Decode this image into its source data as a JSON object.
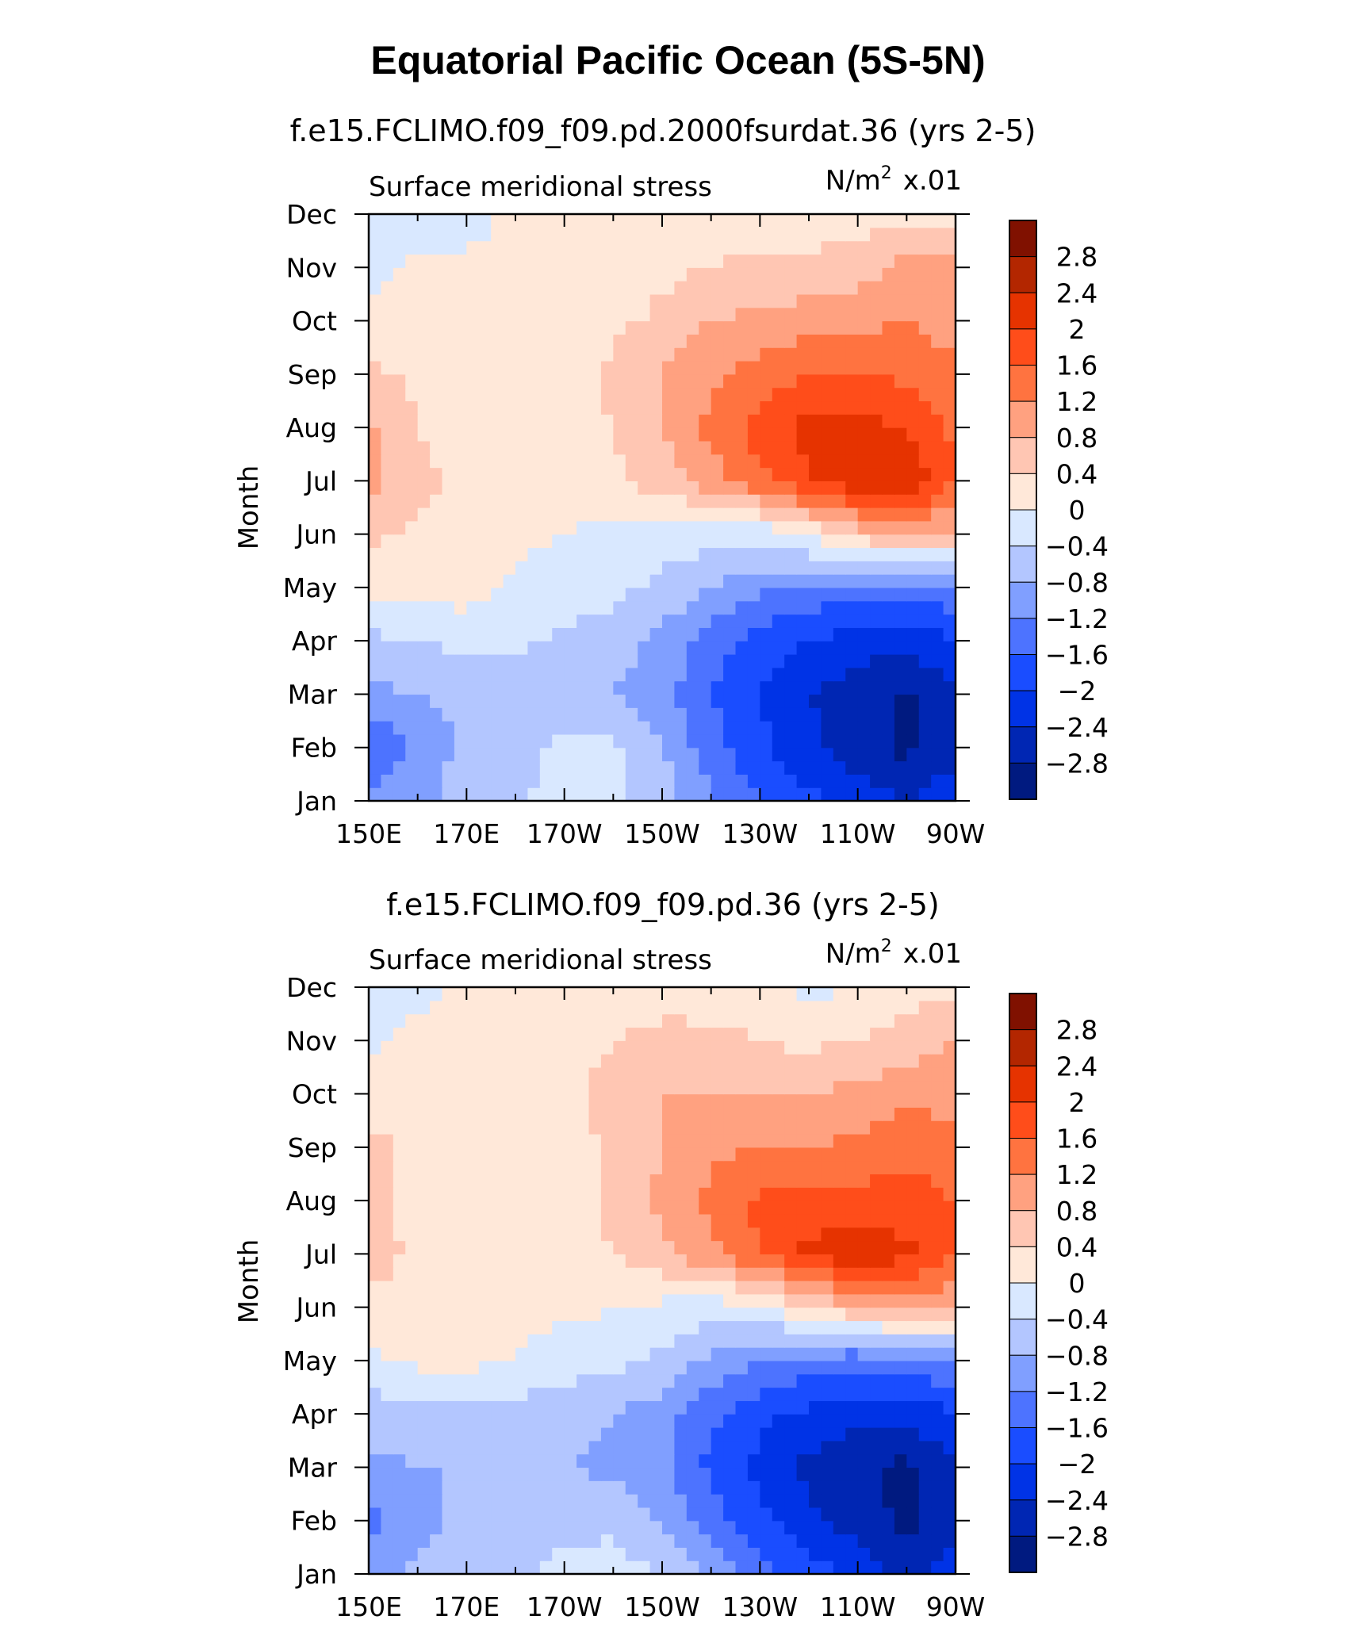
{
  "title": "Equatorial Pacific Ocean (5S-5N)",
  "palette": [
    "#001a80",
    "#0026b3",
    "#0033e6",
    "#1a4dff",
    "#4d73ff",
    "#809fff",
    "#b3c6ff",
    "#d9e8ff",
    "#ffe8d9",
    "#ffc6b3",
    "#ffa180",
    "#ff7340",
    "#ff4d1a",
    "#e63300",
    "#b32600",
    "#801100"
  ],
  "chart_data": [
    {
      "type": "heatmap",
      "subtitle": "f.e15.FCLIMO.f09_f09.pd.2000fsurdat.36 (yrs 2-5)",
      "left_label": "Surface meridional stress",
      "right_label_base": "N/m",
      "right_label_sup": "2",
      "right_label_scale": "x.01",
      "ylabel": "Month",
      "xticks": [
        "150E",
        "170E",
        "170W",
        "150W",
        "130W",
        "110W",
        "90W"
      ],
      "x_range": [
        150,
        270
      ],
      "yticks": [
        "Jan",
        "Feb",
        "Mar",
        "Apr",
        "May",
        "Jun",
        "Jul",
        "Aug",
        "Sep",
        "Oct",
        "Nov",
        "Dec"
      ],
      "colorbar_labels": [
        "2.8",
        "2.4",
        "2",
        "1.6",
        "1.2",
        "0.8",
        "0.4",
        "0",
        "−0.4",
        "−0.8",
        "−1.2",
        "−1.6",
        "−2",
        "−2.4",
        "−2.8"
      ],
      "levels": [
        -2.8,
        -2.4,
        -2,
        -1.6,
        -1.2,
        -0.8,
        -0.4,
        0,
        0.4,
        0.8,
        1.2,
        1.6,
        2,
        2.4,
        2.8
      ],
      "grid_lon": [
        150,
        160,
        170,
        180,
        190,
        200,
        210,
        220,
        230,
        240,
        250,
        260,
        270
      ],
      "grid_month": [
        "Jan",
        "Feb",
        "Mar",
        "Apr",
        "May",
        "Jun",
        "Jul",
        "Aug",
        "Sep",
        "Oct",
        "Nov",
        "Dec"
      ],
      "values": [
        [
          -1.0,
          -0.9,
          -0.6,
          -0.5,
          -0.2,
          -0.3,
          -0.6,
          -1.2,
          -1.6,
          -1.9,
          -2.2,
          -2.4,
          -2.1
        ],
        [
          -1.7,
          -1.1,
          -0.7,
          -0.6,
          -0.3,
          -0.3,
          -0.8,
          -1.4,
          -1.9,
          -2.3,
          -2.6,
          -2.9,
          -2.6
        ],
        [
          -0.9,
          -0.8,
          -0.7,
          -0.7,
          -0.7,
          -0.8,
          -1.0,
          -1.6,
          -2.0,
          -2.4,
          -2.6,
          -2.9,
          -2.5
        ],
        [
          -0.5,
          -0.4,
          -0.3,
          -0.3,
          -0.5,
          -0.6,
          -0.9,
          -1.4,
          -1.8,
          -2.0,
          -2.2,
          -2.3,
          -2.0
        ],
        [
          0.1,
          0.2,
          0.2,
          -0.1,
          -0.2,
          -0.3,
          -0.5,
          -0.8,
          -1.1,
          -1.3,
          -1.4,
          -1.5,
          -1.3
        ],
        [
          0.5,
          0.3,
          0.2,
          0.1,
          0.0,
          -0.1,
          -0.2,
          -0.2,
          -0.3,
          0.1,
          0.6,
          0.9,
          0.7
        ],
        [
          0.9,
          0.5,
          0.3,
          0.2,
          0.2,
          0.3,
          0.6,
          1.0,
          1.5,
          2.0,
          2.3,
          2.4,
          1.6
        ],
        [
          0.9,
          0.4,
          0.2,
          0.2,
          0.2,
          0.4,
          0.8,
          1.3,
          1.8,
          2.1,
          2.1,
          2.0,
          1.5
        ],
        [
          0.5,
          0.3,
          0.2,
          0.2,
          0.2,
          0.5,
          0.8,
          1.1,
          1.4,
          1.6,
          1.6,
          1.5,
          1.3
        ],
        [
          0.1,
          0.2,
          0.2,
          0.2,
          0.2,
          0.3,
          0.5,
          0.8,
          0.9,
          1.0,
          1.1,
          1.2,
          1.0
        ],
        [
          -0.1,
          0.1,
          0.1,
          0.1,
          0.1,
          0.1,
          0.3,
          0.4,
          0.5,
          0.5,
          0.6,
          1.0,
          0.9
        ],
        [
          -0.3,
          -0.2,
          -0.2,
          0.1,
          0.1,
          0.1,
          0.1,
          0.2,
          0.2,
          0.2,
          0.2,
          0.3,
          0.3
        ]
      ]
    },
    {
      "type": "heatmap",
      "subtitle": "f.e15.FCLIMO.f09_f09.pd.36 (yrs 2-5)",
      "left_label": "Surface meridional stress",
      "right_label_base": "N/m",
      "right_label_sup": "2",
      "right_label_scale": "x.01",
      "ylabel": "Month",
      "xticks": [
        "150E",
        "170E",
        "170W",
        "150W",
        "130W",
        "110W",
        "90W"
      ],
      "x_range": [
        150,
        270
      ],
      "yticks": [
        "Jan",
        "Feb",
        "Mar",
        "Apr",
        "May",
        "Jun",
        "Jul",
        "Aug",
        "Sep",
        "Oct",
        "Nov",
        "Dec"
      ],
      "colorbar_labels": [
        "2.8",
        "2.4",
        "2",
        "1.6",
        "1.2",
        "0.8",
        "0.4",
        "0",
        "−0.4",
        "−0.8",
        "−1.2",
        "−1.6",
        "−2",
        "−2.4",
        "−2.8"
      ],
      "levels": [
        -2.8,
        -2.4,
        -2,
        -1.6,
        -1.2,
        -0.8,
        -0.4,
        0,
        0.4,
        0.8,
        1.2,
        1.6,
        2,
        2.4,
        2.8
      ],
      "grid_lon": [
        150,
        160,
        170,
        180,
        190,
        200,
        210,
        220,
        230,
        240,
        250,
        260,
        270
      ],
      "grid_month": [
        "Jan",
        "Feb",
        "Mar",
        "Apr",
        "May",
        "Jun",
        "Jul",
        "Aug",
        "Sep",
        "Oct",
        "Nov",
        "Dec"
      ],
      "values": [
        [
          -0.9,
          -0.7,
          -0.6,
          -0.5,
          -0.3,
          -0.2,
          -0.4,
          -0.9,
          -1.4,
          -1.8,
          -2.1,
          -2.5,
          -2.2
        ],
        [
          -1.3,
          -0.9,
          -0.7,
          -0.6,
          -0.5,
          -0.5,
          -0.8,
          -1.4,
          -1.9,
          -2.3,
          -2.6,
          -2.9,
          -2.5
        ],
        [
          -0.9,
          -0.8,
          -0.8,
          -0.8,
          -0.8,
          -0.9,
          -1.1,
          -1.7,
          -2.1,
          -2.5,
          -2.7,
          -2.9,
          -2.4
        ],
        [
          -0.6,
          -0.6,
          -0.6,
          -0.6,
          -0.6,
          -0.8,
          -1.0,
          -1.5,
          -1.9,
          -2.1,
          -2.3,
          -2.3,
          -2.0
        ],
        [
          -0.1,
          0.1,
          0.1,
          0.0,
          -0.2,
          -0.3,
          -0.5,
          -0.9,
          -1.2,
          -1.4,
          -1.5,
          -1.4,
          -1.2
        ],
        [
          0.3,
          0.2,
          0.1,
          0.1,
          0.1,
          0.0,
          -0.1,
          -0.2,
          -0.1,
          0.4,
          0.8,
          1.0,
          0.8
        ],
        [
          0.6,
          0.3,
          0.2,
          0.2,
          0.3,
          0.4,
          0.7,
          1.1,
          1.6,
          2.1,
          2.3,
          2.1,
          1.6
        ],
        [
          0.6,
          0.2,
          0.2,
          0.2,
          0.2,
          0.5,
          0.9,
          1.3,
          1.7,
          1.8,
          1.7,
          1.8,
          1.6
        ],
        [
          0.6,
          0.2,
          0.2,
          0.2,
          0.2,
          0.5,
          0.8,
          1.1,
          1.2,
          1.2,
          1.3,
          1.5,
          1.4
        ],
        [
          0.1,
          0.2,
          0.2,
          0.2,
          0.3,
          0.5,
          0.8,
          0.8,
          0.8,
          0.8,
          0.9,
          1.1,
          1.0
        ],
        [
          -0.1,
          0.2,
          0.2,
          0.2,
          0.3,
          0.4,
          0.6,
          0.5,
          0.4,
          0.3,
          0.4,
          0.6,
          0.8
        ],
        [
          -0.3,
          -0.2,
          0.1,
          0.1,
          0.1,
          0.1,
          0.1,
          0.2,
          0.1,
          -0.1,
          0.0,
          0.2,
          0.3
        ]
      ]
    }
  ]
}
